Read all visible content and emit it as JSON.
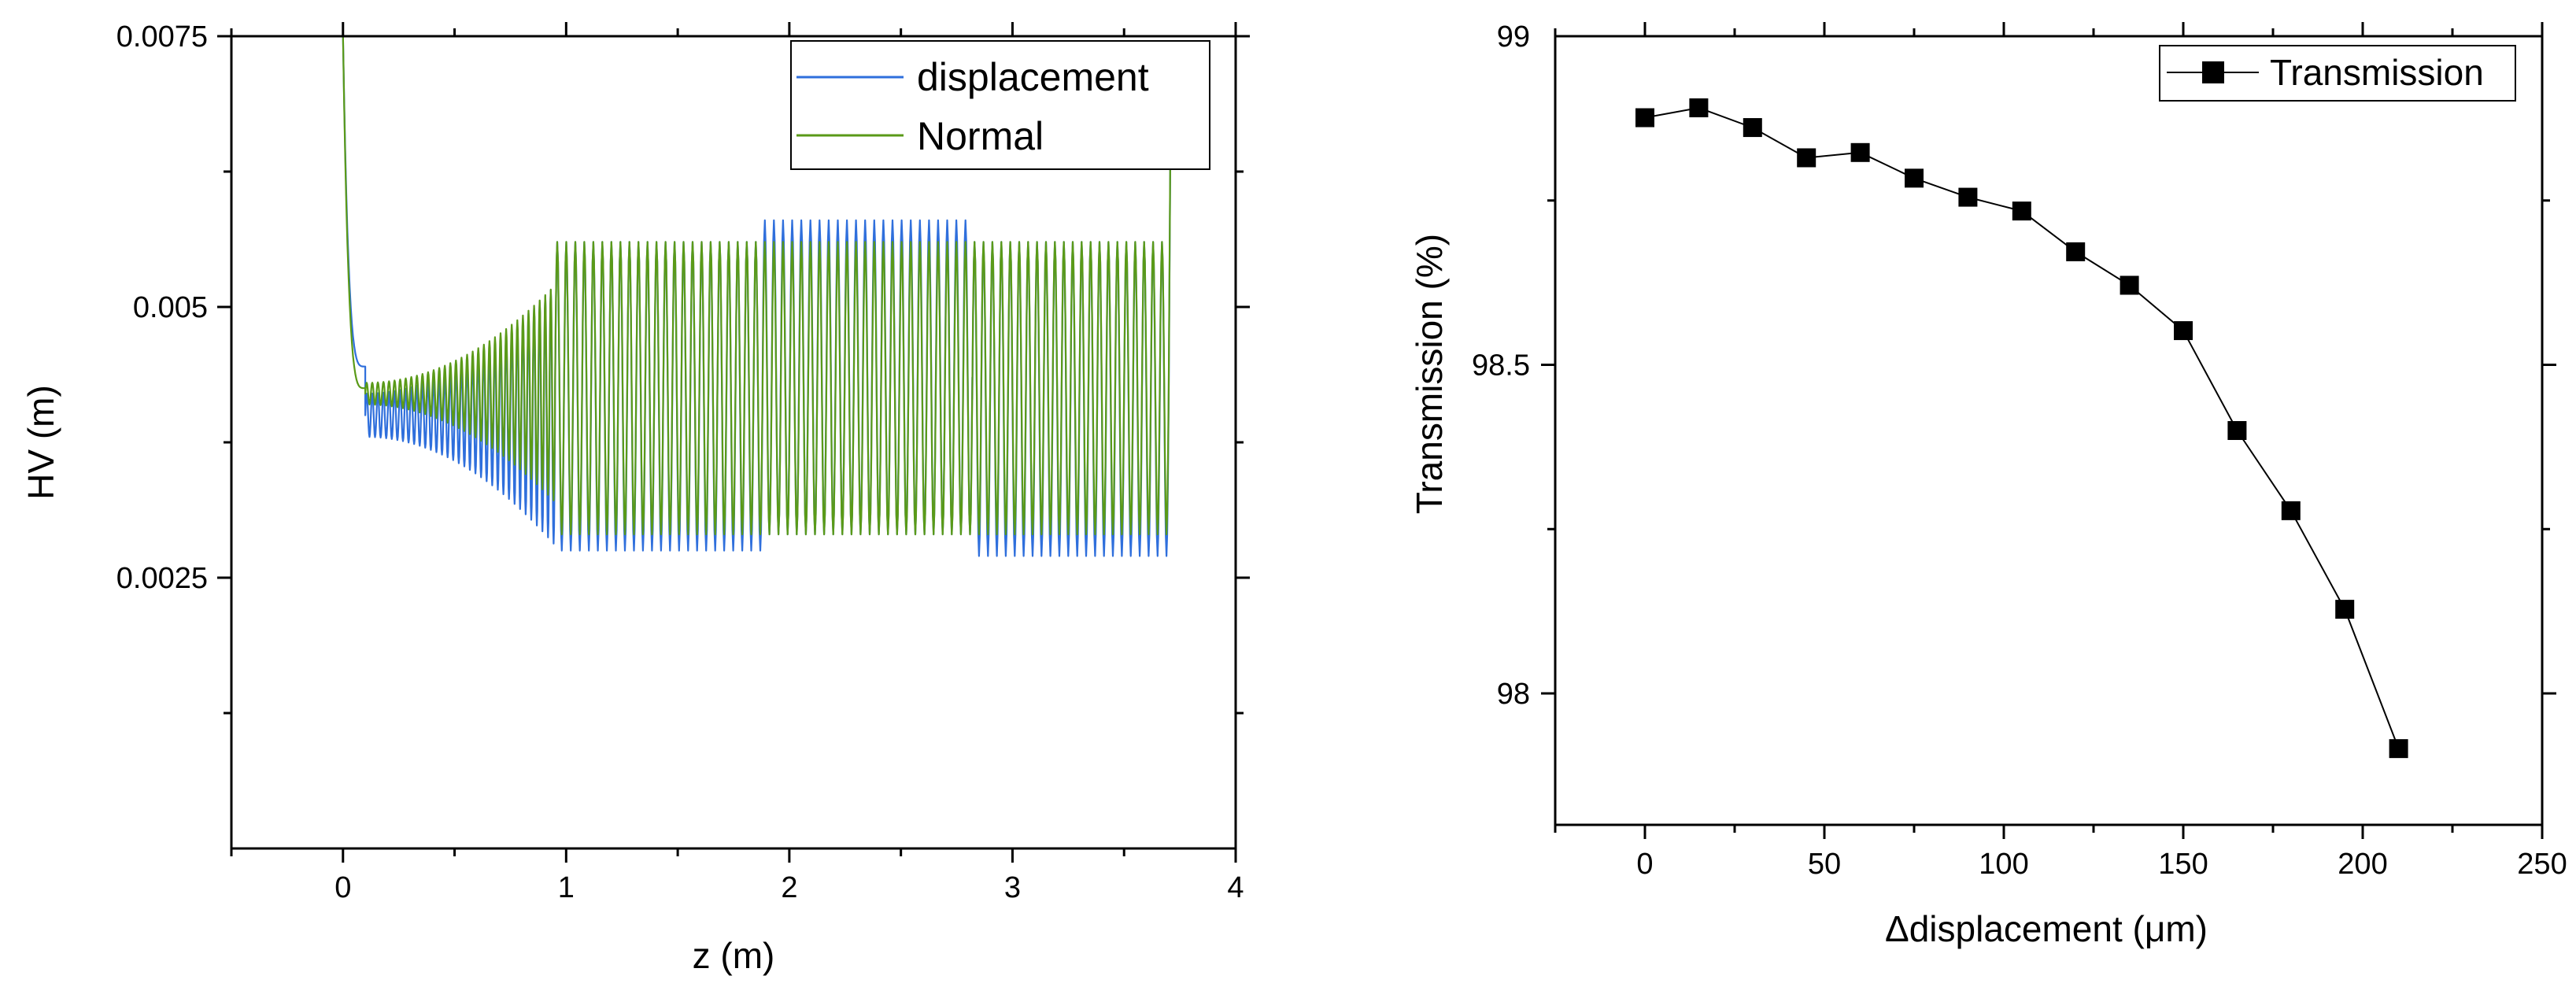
{
  "chart_data": [
    {
      "type": "line",
      "xlabel": "z (m)",
      "ylabel": "HV (m)",
      "xlim": [
        -0.5,
        4
      ],
      "ylim": [
        0,
        0.0075
      ],
      "xticks": [
        0,
        1,
        2,
        3,
        4
      ],
      "xtick_labels": [
        "0",
        "1",
        "2",
        "3",
        "4"
      ],
      "yticks": [
        0.0025,
        0.005,
        0.0075
      ],
      "ytick_labels": [
        "0.0025",
        "0.005",
        "0.0075"
      ],
      "legend": [
        "displacement",
        "Normal"
      ],
      "legend_position": "top-right",
      "series": [
        {
          "name": "displacement",
          "color": "#2f6fdc",
          "description": "oscillating beam envelope",
          "segments": [
            {
              "z_from": 0.0,
              "z_to": 0.1,
              "value_start": 0.0075,
              "value_end": 0.00445
            },
            {
              "z_from": 0.1,
              "z_to": 0.95,
              "center": 0.004,
              "amp_start": 0.0002,
              "amp_end": 0.0012,
              "cycles": 34
            },
            {
              "z_from": 0.95,
              "z_to": 1.88,
              "min": 0.00275,
              "max": 0.0056,
              "cycles": 23
            },
            {
              "z_from": 1.88,
              "z_to": 2.82,
              "min": 0.0029,
              "max": 0.0058,
              "cycles": 23
            },
            {
              "z_from": 2.82,
              "z_to": 3.7,
              "min": 0.0027,
              "max": 0.0056,
              "cycles": 22
            }
          ]
        },
        {
          "name": "Normal",
          "color": "#5a9a18",
          "description": "oscillating beam envelope",
          "segments": [
            {
              "z_from": 0.0,
              "z_to": 0.1,
              "value_start": 0.0075,
              "value_end": 0.00425
            },
            {
              "z_from": 0.1,
              "z_to": 0.95,
              "center": 0.0042,
              "amp_start": 0.0001,
              "amp_end": 0.001,
              "cycles": 34
            },
            {
              "z_from": 0.95,
              "z_to": 1.88,
              "min": 0.0029,
              "max": 0.0056,
              "cycles": 23
            },
            {
              "z_from": 1.88,
              "z_to": 2.82,
              "min": 0.0029,
              "max": 0.0056,
              "cycles": 23
            },
            {
              "z_from": 2.82,
              "z_to": 3.7,
              "min": 0.0029,
              "max": 0.0056,
              "cycles": 22
            }
          ]
        }
      ]
    },
    {
      "type": "line",
      "xlabel": "Δdisplacement (μm)",
      "ylabel": "Transmission (%)",
      "xlim": [
        -25,
        250
      ],
      "ylim": [
        97.8,
        99
      ],
      "xticks": [
        0,
        50,
        100,
        150,
        200,
        250
      ],
      "xtick_labels": [
        "0",
        "50",
        "100",
        "150",
        "200",
        "250"
      ],
      "yticks": [
        98,
        98.5,
        99
      ],
      "ytick_labels": [
        "98",
        "98.5",
        "99"
      ],
      "legend": [
        "Transmission"
      ],
      "legend_position": "top-right",
      "series": [
        {
          "name": "Transmission",
          "color": "#000000",
          "marker": "square",
          "x": [
            0,
            15,
            30,
            45,
            60,
            75,
            90,
            105,
            120,
            135,
            150,
            165,
            180,
            195,
            210
          ],
          "y": [
            98.876,
            98.891,
            98.861,
            98.815,
            98.823,
            98.784,
            98.755,
            98.734,
            98.672,
            98.621,
            98.552,
            98.4,
            98.278,
            98.128,
            97.916
          ]
        }
      ]
    }
  ]
}
